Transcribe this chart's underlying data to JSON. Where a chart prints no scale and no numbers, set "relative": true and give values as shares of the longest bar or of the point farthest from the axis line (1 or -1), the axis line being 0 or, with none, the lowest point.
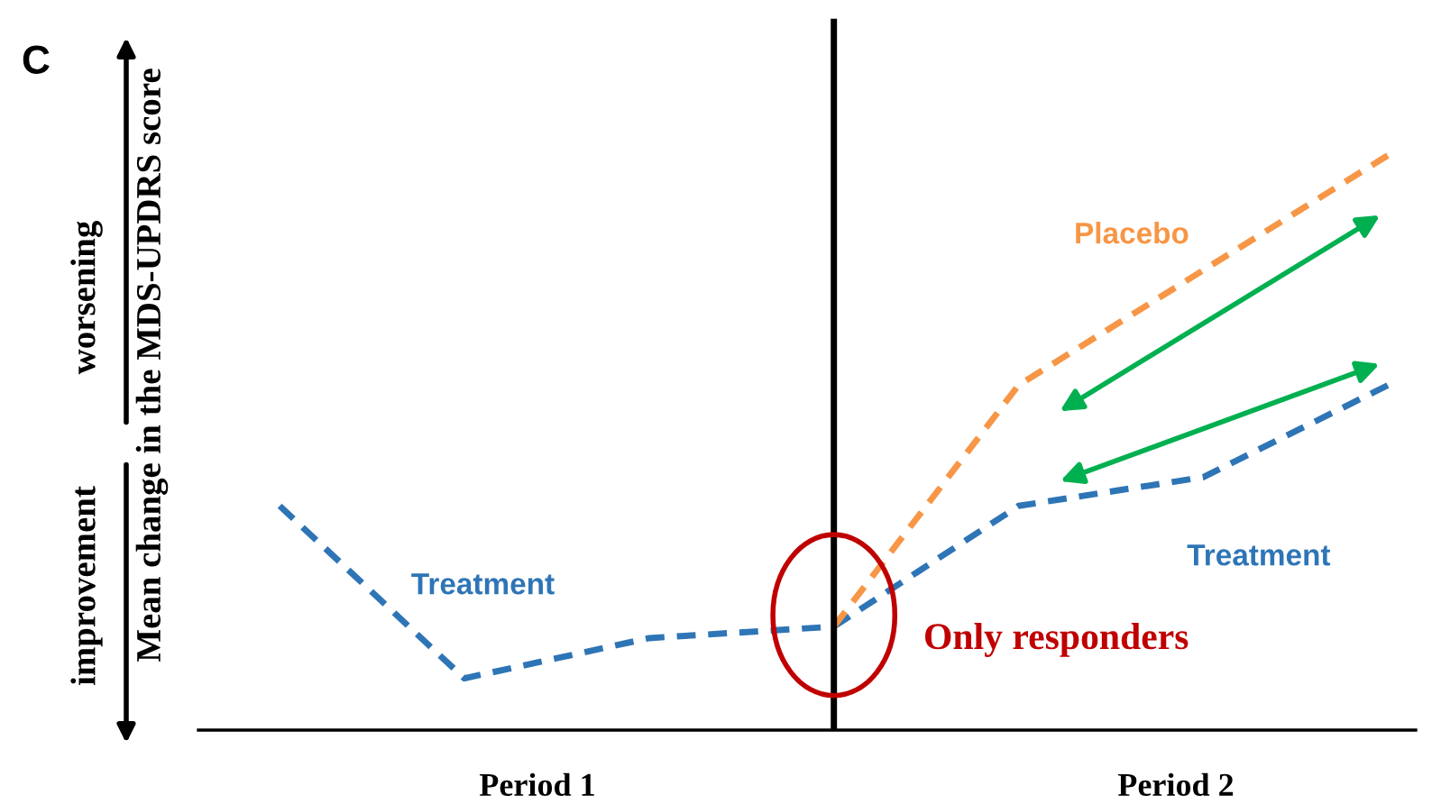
{
  "chart_data": {
    "type": "line",
    "relative": true,
    "ylabel": "Mean change in the MDS-UPDRS score",
    "categories": [
      null,
      null,
      null,
      null,
      null,
      null,
      null
    ],
    "series": [
      {
        "name": "Treatment",
        "color": "#2e75b6",
        "values": [
          0.39,
          0.09,
          0.16,
          0.18,
          null,
          null,
          null
        ]
      },
      {
        "name": "Treatment",
        "color": "#2e75b6",
        "values": [
          null,
          null,
          null,
          0.18,
          0.39,
          0.44,
          0.6
        ]
      },
      {
        "name": "Placebo",
        "color": "#f79646",
        "values": [
          null,
          null,
          null,
          0.18,
          0.6,
          0.8,
          1.0
        ]
      }
    ],
    "line_style": "dashed",
    "marker": "none",
    "legend": false,
    "tick_labels": false,
    "annotations": [
      "C",
      "worsening",
      "improvement",
      "Period 1",
      "Period 2",
      "Only responders"
    ]
  }
}
